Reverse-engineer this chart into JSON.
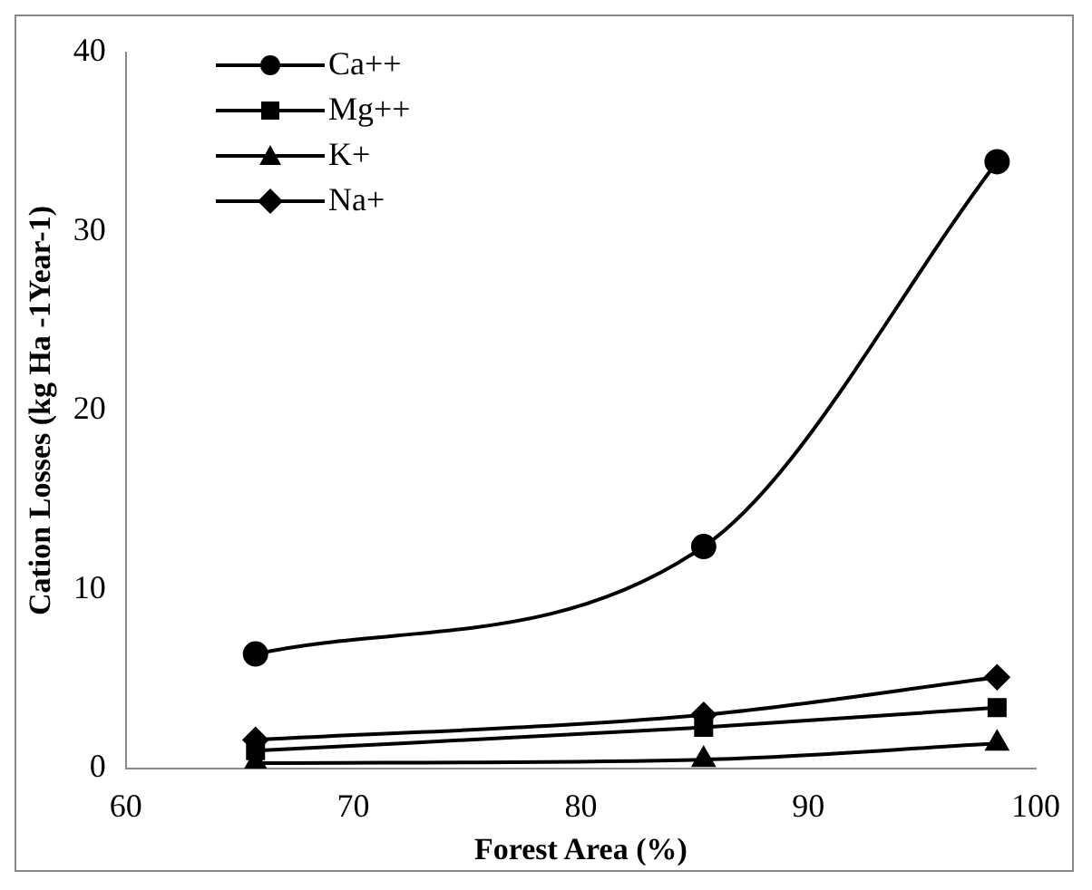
{
  "chart_data": {
    "type": "line",
    "xlabel": "Forest Area (%)",
    "ylabel": "Cation Losses (kg Ha -1Year-1)",
    "x": [
      65.7,
      85.4,
      98.3
    ],
    "xlim": [
      60,
      100
    ],
    "xticks": [
      60,
      70,
      80,
      90,
      100
    ],
    "ylim": [
      0,
      40
    ],
    "yticks": [
      0,
      10,
      20,
      30,
      40
    ],
    "grid": false,
    "legend": "top left",
    "line_style": "solid",
    "series": [
      {
        "name": "Ca++",
        "color": "#000000",
        "marker": "circle",
        "values": [
          6.4,
          12.4,
          33.9
        ]
      },
      {
        "name": "Mg++",
        "color": "#000000",
        "marker": "square",
        "values": [
          1.0,
          2.3,
          3.4
        ]
      },
      {
        "name": "K+",
        "color": "#000000",
        "marker": "triangle",
        "values": [
          0.3,
          0.5,
          1.4
        ]
      },
      {
        "name": "Na+",
        "color": "#000000",
        "marker": "diamond",
        "values": [
          1.6,
          3.0,
          5.1
        ]
      }
    ]
  }
}
